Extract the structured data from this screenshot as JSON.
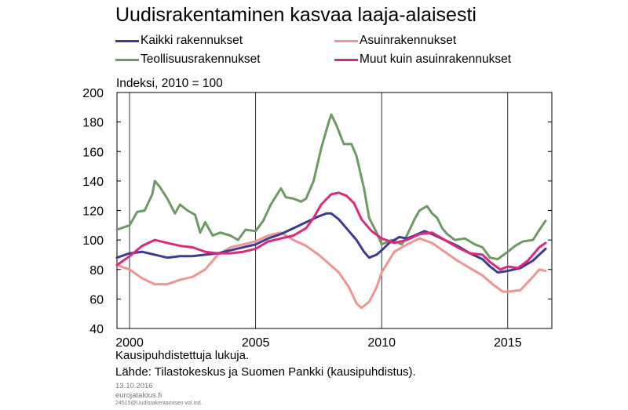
{
  "title": "Uudisrakentaminen kasvaa laaja-alaisesti",
  "unit_label": "Indeksi, 2010 = 100",
  "notes": [
    "Kausipuhdistettuja lukuja.",
    "Lähde: Tilastokeskus ja Suomen Pankki (kausipuhdistus)."
  ],
  "date": "13.10.2016",
  "site": "eurojatalous.fi",
  "file_id": "24515@Uudisrakentamisen vol.ind.",
  "colors": {
    "kaikki": "#3c3c96",
    "asuin": "#f29494",
    "teollisuus": "#6e9a64",
    "muut": "#e0287a"
  },
  "chart_data": {
    "type": "line",
    "title": "Uudisrakentaminen kasvaa laaja-alaisesti",
    "ylabel": "Indeksi, 2010 = 100",
    "xlim": [
      1999.5,
      2016.75
    ],
    "ylim": [
      40,
      200
    ],
    "xticks": [
      2000,
      2005,
      2010,
      2015
    ],
    "yticks": [
      40,
      60,
      80,
      100,
      120,
      140,
      160,
      180,
      200
    ],
    "grid": "vertical lines at 2000, 2005, 2010, 2015",
    "legend_position": "top, two columns",
    "series": [
      {
        "name": "Kaikki rakennukset",
        "color_key": "kaikki",
        "points": [
          [
            1999.5,
            88
          ],
          [
            2000,
            91
          ],
          [
            2000.5,
            92
          ],
          [
            2001,
            90
          ],
          [
            2001.5,
            88
          ],
          [
            2002,
            89
          ],
          [
            2002.5,
            89
          ],
          [
            2003,
            90
          ],
          [
            2003.5,
            91
          ],
          [
            2004,
            93
          ],
          [
            2004.5,
            95
          ],
          [
            2005,
            97
          ],
          [
            2005.5,
            101
          ],
          [
            2006,
            104
          ],
          [
            2006.5,
            108
          ],
          [
            2007,
            112
          ],
          [
            2007.5,
            116
          ],
          [
            2007.8,
            118
          ],
          [
            2008,
            118
          ],
          [
            2008.3,
            114
          ],
          [
            2008.7,
            106
          ],
          [
            2009,
            100
          ],
          [
            2009.3,
            92
          ],
          [
            2009.5,
            88
          ],
          [
            2009.8,
            90
          ],
          [
            2010,
            93
          ],
          [
            2010.3,
            98
          ],
          [
            2010.7,
            102
          ],
          [
            2011,
            101
          ],
          [
            2011.3,
            103
          ],
          [
            2011.7,
            106
          ],
          [
            2012,
            104
          ],
          [
            2012.5,
            100
          ],
          [
            2013,
            96
          ],
          [
            2013.5,
            91
          ],
          [
            2014,
            87
          ],
          [
            2014.3,
            82
          ],
          [
            2014.6,
            78
          ],
          [
            2015,
            79
          ],
          [
            2015.5,
            81
          ],
          [
            2016,
            86
          ],
          [
            2016.25,
            90
          ],
          [
            2016.5,
            94
          ]
        ]
      },
      {
        "name": "Asuinrakennukset",
        "color_key": "asuin",
        "points": [
          [
            1999.5,
            83
          ],
          [
            2000,
            80
          ],
          [
            2000.5,
            74
          ],
          [
            2001,
            70
          ],
          [
            2001.5,
            70
          ],
          [
            2002,
            73
          ],
          [
            2002.5,
            75
          ],
          [
            2003,
            80
          ],
          [
            2003.5,
            90
          ],
          [
            2004,
            95
          ],
          [
            2004.5,
            97
          ],
          [
            2005,
            99
          ],
          [
            2005.5,
            103
          ],
          [
            2006,
            105
          ],
          [
            2006.5,
            100
          ],
          [
            2007,
            96
          ],
          [
            2007.5,
            90
          ],
          [
            2007.9,
            84
          ],
          [
            2008.3,
            78
          ],
          [
            2008.7,
            68
          ],
          [
            2009,
            57
          ],
          [
            2009.2,
            54
          ],
          [
            2009.5,
            58
          ],
          [
            2009.8,
            68
          ],
          [
            2010,
            78
          ],
          [
            2010.5,
            92
          ],
          [
            2011,
            97
          ],
          [
            2011.5,
            101
          ],
          [
            2012,
            98
          ],
          [
            2012.5,
            92
          ],
          [
            2013,
            86
          ],
          [
            2013.5,
            81
          ],
          [
            2014,
            76
          ],
          [
            2014.4,
            70
          ],
          [
            2014.8,
            65
          ],
          [
            2015,
            65
          ],
          [
            2015.5,
            66
          ],
          [
            2016,
            75
          ],
          [
            2016.25,
            80
          ],
          [
            2016.5,
            79
          ]
        ]
      },
      {
        "name": "Teollisuusrakennukset",
        "color_key": "teollisuus",
        "points": [
          [
            1999.5,
            107
          ],
          [
            2000,
            110
          ],
          [
            2000.3,
            119
          ],
          [
            2000.6,
            120
          ],
          [
            2000.9,
            131
          ],
          [
            2001,
            140
          ],
          [
            2001.2,
            136
          ],
          [
            2001.5,
            128
          ],
          [
            2001.8,
            118
          ],
          [
            2002,
            124
          ],
          [
            2002.3,
            120
          ],
          [
            2002.6,
            117
          ],
          [
            2002.8,
            105
          ],
          [
            2003,
            112
          ],
          [
            2003.3,
            103
          ],
          [
            2003.6,
            105
          ],
          [
            2004,
            103
          ],
          [
            2004.3,
            100
          ],
          [
            2004.6,
            107
          ],
          [
            2005,
            106
          ],
          [
            2005.3,
            113
          ],
          [
            2005.6,
            124
          ],
          [
            2006,
            135
          ],
          [
            2006.2,
            129
          ],
          [
            2006.5,
            128
          ],
          [
            2006.8,
            126
          ],
          [
            2007,
            128
          ],
          [
            2007.3,
            140
          ],
          [
            2007.6,
            162
          ],
          [
            2007.9,
            180
          ],
          [
            2008,
            185
          ],
          [
            2008.2,
            178
          ],
          [
            2008.5,
            165
          ],
          [
            2008.8,
            165
          ],
          [
            2009,
            157
          ],
          [
            2009.3,
            135
          ],
          [
            2009.5,
            115
          ],
          [
            2009.8,
            105
          ],
          [
            2010,
            97
          ],
          [
            2010.4,
            100
          ],
          [
            2010.8,
            97
          ],
          [
            2011,
            103
          ],
          [
            2011.3,
            114
          ],
          [
            2011.5,
            120
          ],
          [
            2011.8,
            123
          ],
          [
            2012,
            118
          ],
          [
            2012.2,
            115
          ],
          [
            2012.4,
            108
          ],
          [
            2012.6,
            104
          ],
          [
            2012.9,
            100
          ],
          [
            2013.3,
            101
          ],
          [
            2013.7,
            97
          ],
          [
            2014,
            95
          ],
          [
            2014.3,
            88
          ],
          [
            2014.6,
            87
          ],
          [
            2015,
            92
          ],
          [
            2015.3,
            96
          ],
          [
            2015.6,
            99
          ],
          [
            2016,
            100
          ],
          [
            2016.3,
            108
          ],
          [
            2016.5,
            113
          ]
        ]
      },
      {
        "name": "Muut kuin asuinrakennukset",
        "color_key": "muut",
        "points": [
          [
            1999.5,
            83
          ],
          [
            2000,
            89
          ],
          [
            2000.5,
            96
          ],
          [
            2001,
            100
          ],
          [
            2001.5,
            98
          ],
          [
            2002,
            96
          ],
          [
            2002.5,
            95
          ],
          [
            2003,
            92
          ],
          [
            2003.5,
            91
          ],
          [
            2004,
            91
          ],
          [
            2004.5,
            92
          ],
          [
            2005,
            94
          ],
          [
            2005.5,
            99
          ],
          [
            2006,
            101
          ],
          [
            2006.5,
            103
          ],
          [
            2007,
            108
          ],
          [
            2007.3,
            115
          ],
          [
            2007.6,
            124
          ],
          [
            2008,
            131
          ],
          [
            2008.3,
            132
          ],
          [
            2008.6,
            130
          ],
          [
            2008.9,
            125
          ],
          [
            2009.2,
            114
          ],
          [
            2009.6,
            106
          ],
          [
            2010,
            101
          ],
          [
            2010.5,
            98
          ],
          [
            2011,
            100
          ],
          [
            2011.5,
            104
          ],
          [
            2012,
            105
          ],
          [
            2012.5,
            100
          ],
          [
            2013,
            95
          ],
          [
            2013.5,
            91
          ],
          [
            2014,
            90
          ],
          [
            2014.3,
            85
          ],
          [
            2014.7,
            80
          ],
          [
            2015,
            82
          ],
          [
            2015.4,
            81
          ],
          [
            2015.8,
            86
          ],
          [
            2016,
            90
          ],
          [
            2016.25,
            95
          ],
          [
            2016.5,
            98
          ]
        ]
      }
    ]
  },
  "legend": [
    {
      "label": "Kaikki rakennukset",
      "color_key": "kaikki"
    },
    {
      "label": "Asuinrakennukset",
      "color_key": "asuin"
    },
    {
      "label": "Teollisuusrakennukset",
      "color_key": "teollisuus"
    },
    {
      "label": "Muut kuin asuinrakennukset",
      "color_key": "muut"
    }
  ]
}
